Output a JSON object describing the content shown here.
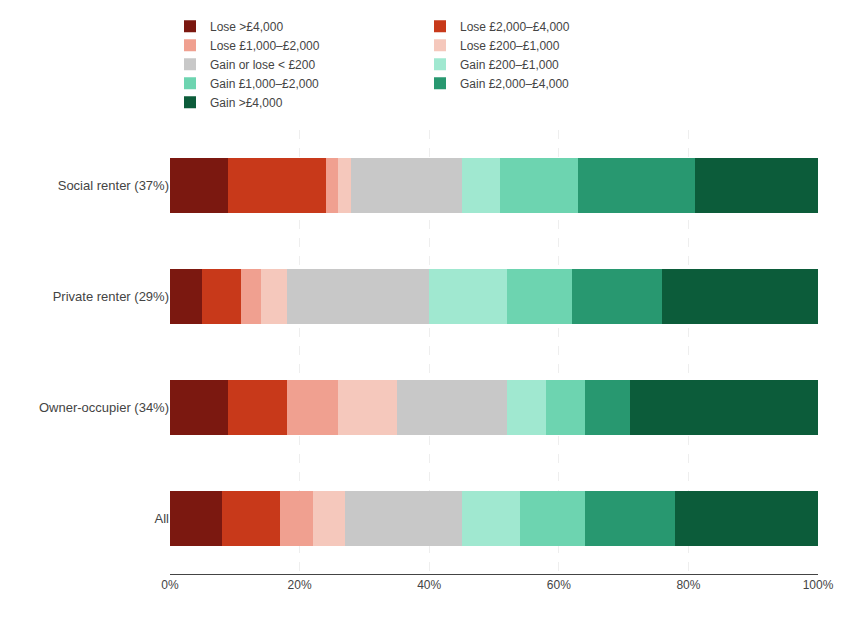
{
  "chart_data": {
    "type": "bar",
    "orientation": "horizontal",
    "stacked": true,
    "categories": [
      "All",
      "Owner-occupier (34%)",
      "Private renter (29%)",
      "Social renter (37%)"
    ],
    "series": [
      {
        "name": "Lose >£4,000",
        "color": "#7B1810",
        "values": [
          8,
          9,
          5,
          9
        ]
      },
      {
        "name": "Lose £2,000–£4,000",
        "color": "#C8391A",
        "values": [
          9,
          9,
          6,
          15
        ]
      },
      {
        "name": "Lose £1,000–£2,000",
        "color": "#F0A090",
        "values": [
          5,
          8,
          3,
          2
        ]
      },
      {
        "name": "Lose £200–£1,000",
        "color": "#F5C8BC",
        "values": [
          5,
          9,
          4,
          2
        ]
      },
      {
        "name": "Gain or lose < £200",
        "color": "#C8C8C8",
        "values": [
          18,
          17,
          22,
          17
        ]
      },
      {
        "name": "Gain £200–£1,000",
        "color": "#A0E8D0",
        "values": [
          9,
          6,
          12,
          6
        ]
      },
      {
        "name": "Gain £1,000–£2,000",
        "color": "#6DD4B0",
        "values": [
          10,
          6,
          10,
          12
        ]
      },
      {
        "name": "Gain £2,000–£4,000",
        "color": "#289870",
        "values": [
          14,
          7,
          14,
          18
        ]
      },
      {
        "name": "Gain >£4,000",
        "color": "#0C5C3A",
        "values": [
          22,
          29,
          24,
          19
        ]
      }
    ],
    "xlim": [
      0,
      100
    ],
    "xticks": [
      {
        "value": 0,
        "label": "0%"
      },
      {
        "value": 20,
        "label": "20%"
      },
      {
        "value": 40,
        "label": "40%"
      },
      {
        "value": 60,
        "label": "60%"
      },
      {
        "value": 80,
        "label": "80%"
      },
      {
        "value": 100,
        "label": "100%"
      }
    ],
    "grid": true,
    "legend": "top"
  }
}
